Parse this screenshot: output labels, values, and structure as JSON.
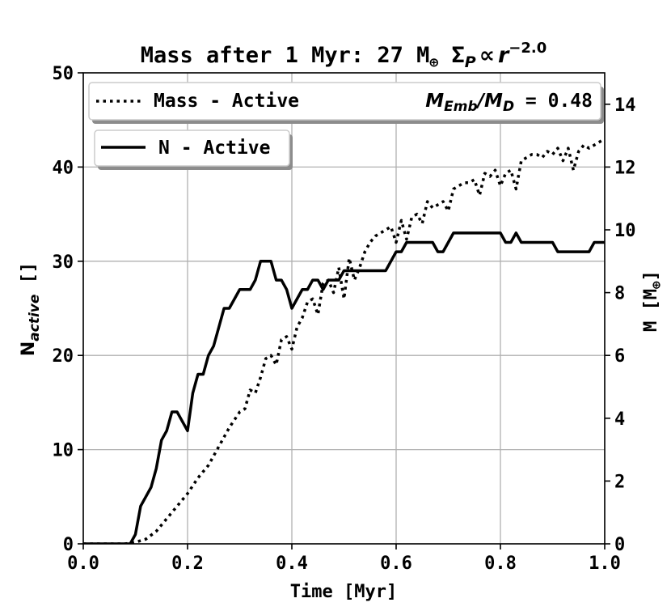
{
  "chart_data": {
    "type": "line",
    "title": {
      "prefix": "Mass after 1 Myr: 27 M",
      "prefix_sub": "⊕",
      "sigma": "Σ",
      "sigma_sub": "P",
      "proportional": "∝",
      "r": "r",
      "exponent": "−2.0"
    },
    "xlabel": "Time [Myr]",
    "ylabel_left": {
      "main": "N",
      "sub": "active",
      "unit": " []"
    },
    "ylabel_right": {
      "main": "M [M",
      "sub": "⊕",
      "close": "]"
    },
    "xlim": [
      0.0,
      1.0
    ],
    "ylim_left": [
      0,
      50
    ],
    "ylim_right": [
      0,
      15
    ],
    "xticks": [
      0.0,
      0.2,
      0.4,
      0.6,
      0.8,
      1.0
    ],
    "xtick_labels": [
      "0.0",
      "0.2",
      "0.4",
      "0.6",
      "0.8",
      "1.0"
    ],
    "yticks_left": [
      0,
      10,
      20,
      30,
      40,
      50
    ],
    "ytick_labels_left": [
      "0",
      "10",
      "20",
      "30",
      "40",
      "50"
    ],
    "yticks_right": [
      0,
      2,
      4,
      6,
      8,
      10,
      12,
      14
    ],
    "ytick_labels_right": [
      "0",
      "2",
      "4",
      "6",
      "8",
      "10",
      "12",
      "14"
    ],
    "grid": true,
    "legend_top": {
      "label": "Mass - Active",
      "ratio_main_a": "M",
      "ratio_sub_a": "Emb",
      "ratio_slash": "/M",
      "ratio_sub_b": "D",
      "ratio_value": " = 0.48"
    },
    "legend_bottom": {
      "label": "N - Active"
    },
    "series": [
      {
        "name": "N - Active",
        "axis": "left",
        "style": "solid",
        "x": [
          0.0,
          0.09,
          0.1,
          0.11,
          0.12,
          0.13,
          0.14,
          0.15,
          0.16,
          0.17,
          0.18,
          0.19,
          0.2,
          0.21,
          0.22,
          0.23,
          0.24,
          0.25,
          0.26,
          0.27,
          0.28,
          0.29,
          0.3,
          0.31,
          0.32,
          0.33,
          0.34,
          0.35,
          0.36,
          0.37,
          0.38,
          0.39,
          0.4,
          0.41,
          0.42,
          0.43,
          0.44,
          0.45,
          0.46,
          0.47,
          0.48,
          0.49,
          0.5,
          0.51,
          0.52,
          0.54,
          0.56,
          0.58,
          0.59,
          0.6,
          0.61,
          0.62,
          0.63,
          0.64,
          0.65,
          0.66,
          0.67,
          0.68,
          0.69,
          0.7,
          0.71,
          0.72,
          0.73,
          0.74,
          0.75,
          0.76,
          0.77,
          0.78,
          0.79,
          0.8,
          0.81,
          0.82,
          0.83,
          0.84,
          0.85,
          0.86,
          0.87,
          0.88,
          0.89,
          0.9,
          0.91,
          0.92,
          0.93,
          0.94,
          0.95,
          0.96,
          0.97,
          0.98,
          0.99,
          1.0
        ],
        "values": [
          0,
          0,
          1,
          4,
          5,
          6,
          8,
          11,
          12,
          14,
          14,
          13,
          12,
          16,
          18,
          18,
          20,
          21,
          23,
          25,
          25,
          26,
          27,
          27,
          27,
          28,
          30,
          30,
          30,
          28,
          28,
          27,
          25,
          26,
          27,
          27,
          28,
          28,
          27,
          28,
          28,
          28,
          29,
          29,
          29,
          29,
          29,
          29,
          30,
          31,
          31,
          32,
          32,
          32,
          32,
          32,
          32,
          31,
          31,
          32,
          33,
          33,
          33,
          33,
          33,
          33,
          33,
          33,
          33,
          33,
          32,
          32,
          33,
          32,
          32,
          32,
          32,
          32,
          32,
          32,
          31,
          31,
          31,
          31,
          31,
          31,
          31,
          32,
          32,
          32
        ]
      },
      {
        "name": "Mass - Active",
        "axis": "right",
        "style": "dotted",
        "x": [
          0.0,
          0.08,
          0.1,
          0.12,
          0.14,
          0.16,
          0.18,
          0.2,
          0.22,
          0.24,
          0.26,
          0.28,
          0.3,
          0.31,
          0.32,
          0.33,
          0.34,
          0.35,
          0.36,
          0.37,
          0.38,
          0.39,
          0.4,
          0.41,
          0.42,
          0.43,
          0.44,
          0.45,
          0.46,
          0.47,
          0.48,
          0.49,
          0.5,
          0.51,
          0.52,
          0.53,
          0.54,
          0.55,
          0.56,
          0.57,
          0.58,
          0.59,
          0.6,
          0.61,
          0.62,
          0.63,
          0.64,
          0.65,
          0.66,
          0.67,
          0.68,
          0.69,
          0.7,
          0.71,
          0.72,
          0.73,
          0.74,
          0.75,
          0.76,
          0.77,
          0.78,
          0.79,
          0.8,
          0.81,
          0.82,
          0.83,
          0.84,
          0.85,
          0.86,
          0.87,
          0.88,
          0.89,
          0.9,
          0.91,
          0.92,
          0.93,
          0.94,
          0.95,
          0.96,
          0.97,
          0.98,
          0.99,
          1.0
        ],
        "values": [
          0.0,
          0.0,
          0.05,
          0.15,
          0.4,
          0.8,
          1.2,
          1.6,
          2.1,
          2.5,
          3.1,
          3.7,
          4.2,
          4.3,
          4.9,
          4.8,
          5.3,
          5.9,
          6.0,
          5.7,
          6.5,
          6.6,
          6.2,
          6.9,
          7.2,
          7.7,
          7.8,
          7.3,
          8.3,
          8.4,
          8.0,
          8.8,
          7.8,
          9.1,
          8.4,
          8.8,
          9.3,
          9.6,
          9.8,
          9.9,
          10.0,
          10.1,
          9.6,
          10.3,
          9.7,
          10.4,
          10.5,
          10.2,
          10.9,
          10.7,
          10.8,
          10.9,
          10.6,
          11.3,
          11.4,
          11.5,
          11.5,
          11.6,
          11.1,
          11.8,
          11.7,
          11.9,
          11.4,
          11.8,
          11.9,
          11.3,
          12.2,
          12.3,
          12.4,
          12.4,
          12.3,
          12.5,
          12.4,
          12.6,
          12.2,
          12.6,
          11.9,
          12.5,
          12.7,
          12.6,
          12.7,
          12.8,
          12.9
        ]
      }
    ]
  }
}
